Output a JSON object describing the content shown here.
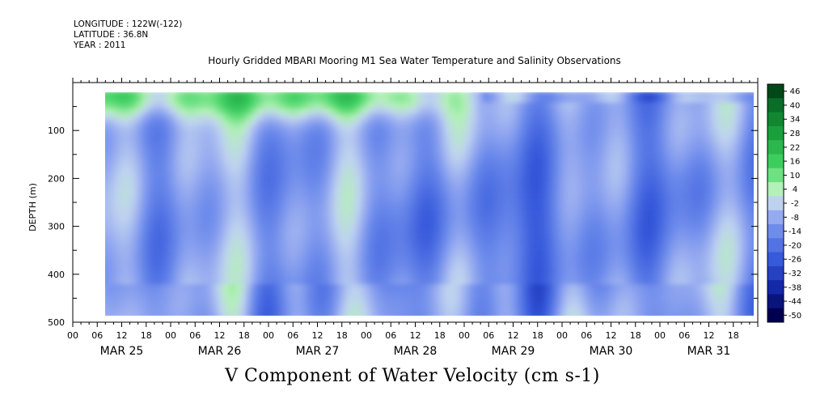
{
  "header": {
    "longitude": "LONGITUDE : 122W(-122)",
    "latitude": "LATITUDE : 36.8N",
    "year": "YEAR : 2011"
  },
  "chart_data": {
    "type": "heatmap",
    "title": "Hourly Gridded MBARI Mooring M1 Sea Water Temperature and Salinity Observations",
    "xlabel": "",
    "ylabel": "DEPTH (m)",
    "bottom_title": "V Component of Water Velocity (cm s-1)",
    "y_ticks": [
      100,
      200,
      300,
      400,
      500
    ],
    "ylim": [
      500,
      0
    ],
    "y_reversed": true,
    "x_hour_labels": [
      "00",
      "06",
      "12",
      "18",
      "00",
      "06",
      "12",
      "18",
      "00",
      "06",
      "12",
      "18",
      "00",
      "06",
      "12",
      "18",
      "00",
      "06",
      "12",
      "18",
      "00",
      "06",
      "12",
      "18",
      "00",
      "06",
      "12",
      "18"
    ],
    "x_day_labels": [
      "MAR 25",
      "MAR 26",
      "MAR 27",
      "MAR 28",
      "MAR 29",
      "MAR 30",
      "MAR 31"
    ],
    "data_depth_range": [
      20,
      490
    ],
    "data_start": "MAR 25 06:00",
    "data_end": "MAR 31 24:00",
    "colorbar": {
      "levels": [
        46,
        40,
        34,
        28,
        22,
        16,
        10,
        4,
        -2,
        -8,
        -14,
        -20,
        -26,
        -32,
        -38,
        -44,
        -50
      ],
      "color_low": "#000050",
      "color_mid_neg": "#8fa8ea",
      "color_zero": "#c8f0c8",
      "color_high": "#004818"
    },
    "summary": "Near-surface (20-100 m) mostly positive northward flow (green, ~+4 to +22) on MAR 25-28; interior mostly negative (blue, -8 to -32) with strongest negative cores on MAR 28-30"
  }
}
